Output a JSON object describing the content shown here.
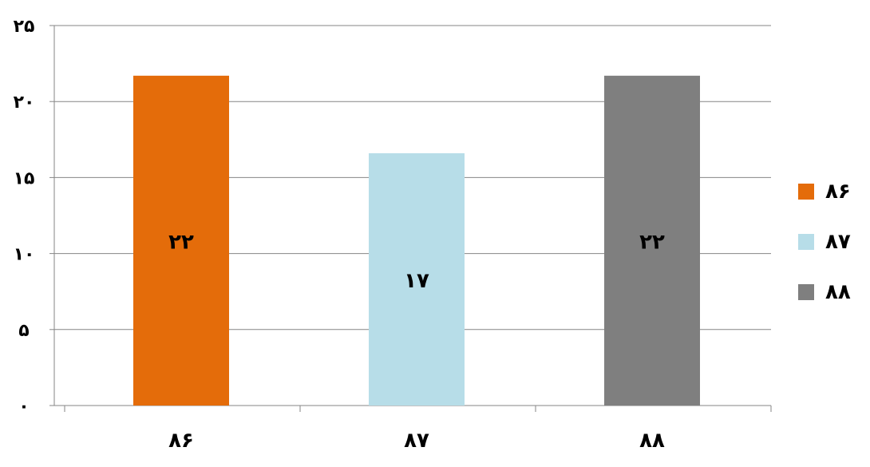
{
  "chart_data": {
    "type": "bar",
    "categories": [
      "۸۶",
      "۸۷",
      "۸۸"
    ],
    "values": [
      21.7,
      16.6,
      21.7
    ],
    "data_labels": [
      "۲۲",
      "۱۷",
      "۲۲"
    ],
    "colors": [
      "#e46c0a",
      "#b7dde8",
      "#7f7f7f"
    ],
    "ylim": [
      0,
      25
    ],
    "yticks": [
      {
        "value": 0,
        "label": "۰"
      },
      {
        "value": 5,
        "label": "۵"
      },
      {
        "value": 10,
        "label": "۱۰"
      },
      {
        "value": 15,
        "label": "۱۵"
      },
      {
        "value": 20,
        "label": "۲۰"
      },
      {
        "value": 25,
        "label": "۲۵"
      }
    ],
    "grid": true,
    "legend": {
      "placement": "right",
      "items": [
        {
          "label": "۸۶",
          "color": "#e46c0a"
        },
        {
          "label": "۸۷",
          "color": "#b7dde8"
        },
        {
          "label": "۸۸",
          "color": "#7f7f7f"
        }
      ]
    },
    "title": "",
    "xlabel": "",
    "ylabel": ""
  }
}
